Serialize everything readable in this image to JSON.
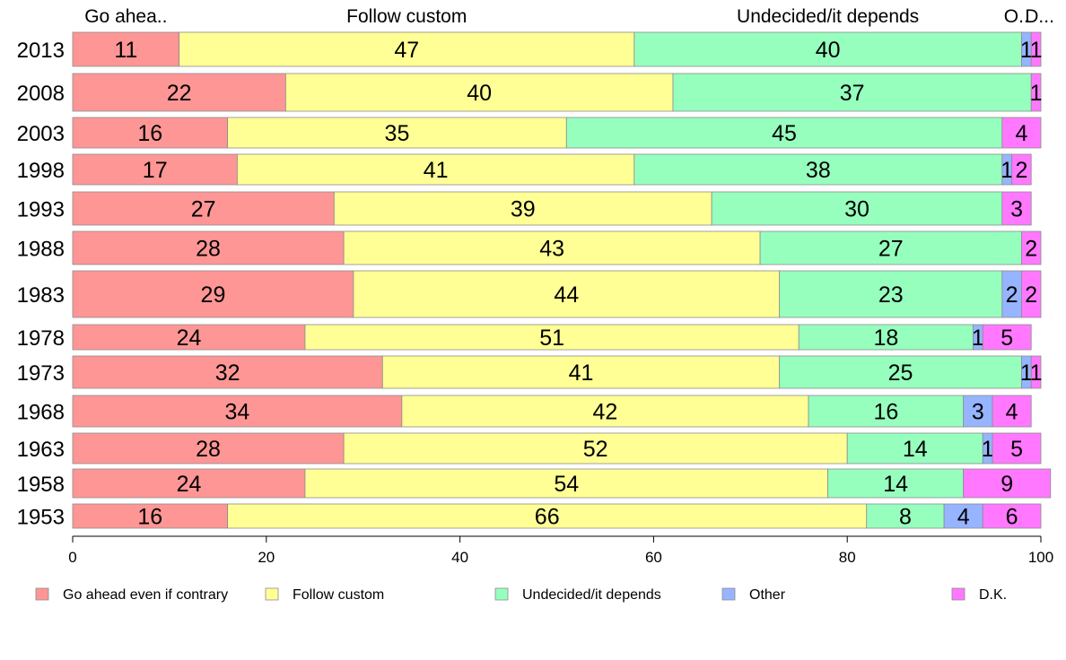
{
  "chart_data": {
    "type": "bar",
    "orientation": "horizontal",
    "stacked": true,
    "categories": [
      "2013",
      "2008",
      "2003",
      "1998",
      "1993",
      "1988",
      "1983",
      "1978",
      "1973",
      "1968",
      "1963",
      "1958",
      "1953"
    ],
    "series": [
      {
        "name": "Go ahead even if contrary",
        "short_label": "Go ahea..",
        "color": "#ff9696",
        "values": [
          11,
          22,
          16,
          17,
          27,
          28,
          29,
          24,
          32,
          34,
          28,
          24,
          16
        ]
      },
      {
        "name": "Follow custom",
        "short_label": "Follow custom",
        "color": "#ffff96",
        "values": [
          47,
          40,
          35,
          41,
          39,
          43,
          44,
          51,
          41,
          42,
          52,
          54,
          66
        ]
      },
      {
        "name": "Undecided/it depends",
        "short_label": "Undecided/it depends",
        "color": "#96ffbe",
        "values": [
          40,
          37,
          45,
          38,
          30,
          27,
          23,
          18,
          25,
          16,
          14,
          14,
          8
        ]
      },
      {
        "name": "Other",
        "short_label": "O..",
        "color": "#96b4ff",
        "values": [
          1,
          0,
          0,
          1,
          0,
          0,
          2,
          1,
          1,
          3,
          1,
          0,
          4
        ]
      },
      {
        "name": "D.K.",
        "short_label": "D...",
        "color": "#ff78ff",
        "values": [
          1,
          1,
          4,
          2,
          3,
          2,
          2,
          5,
          1,
          4,
          5,
          9,
          6
        ]
      }
    ],
    "xlim": [
      0,
      100
    ],
    "xticks": [
      0,
      20,
      40,
      60,
      80,
      100
    ],
    "legend_position": "bottom",
    "grid": false
  }
}
